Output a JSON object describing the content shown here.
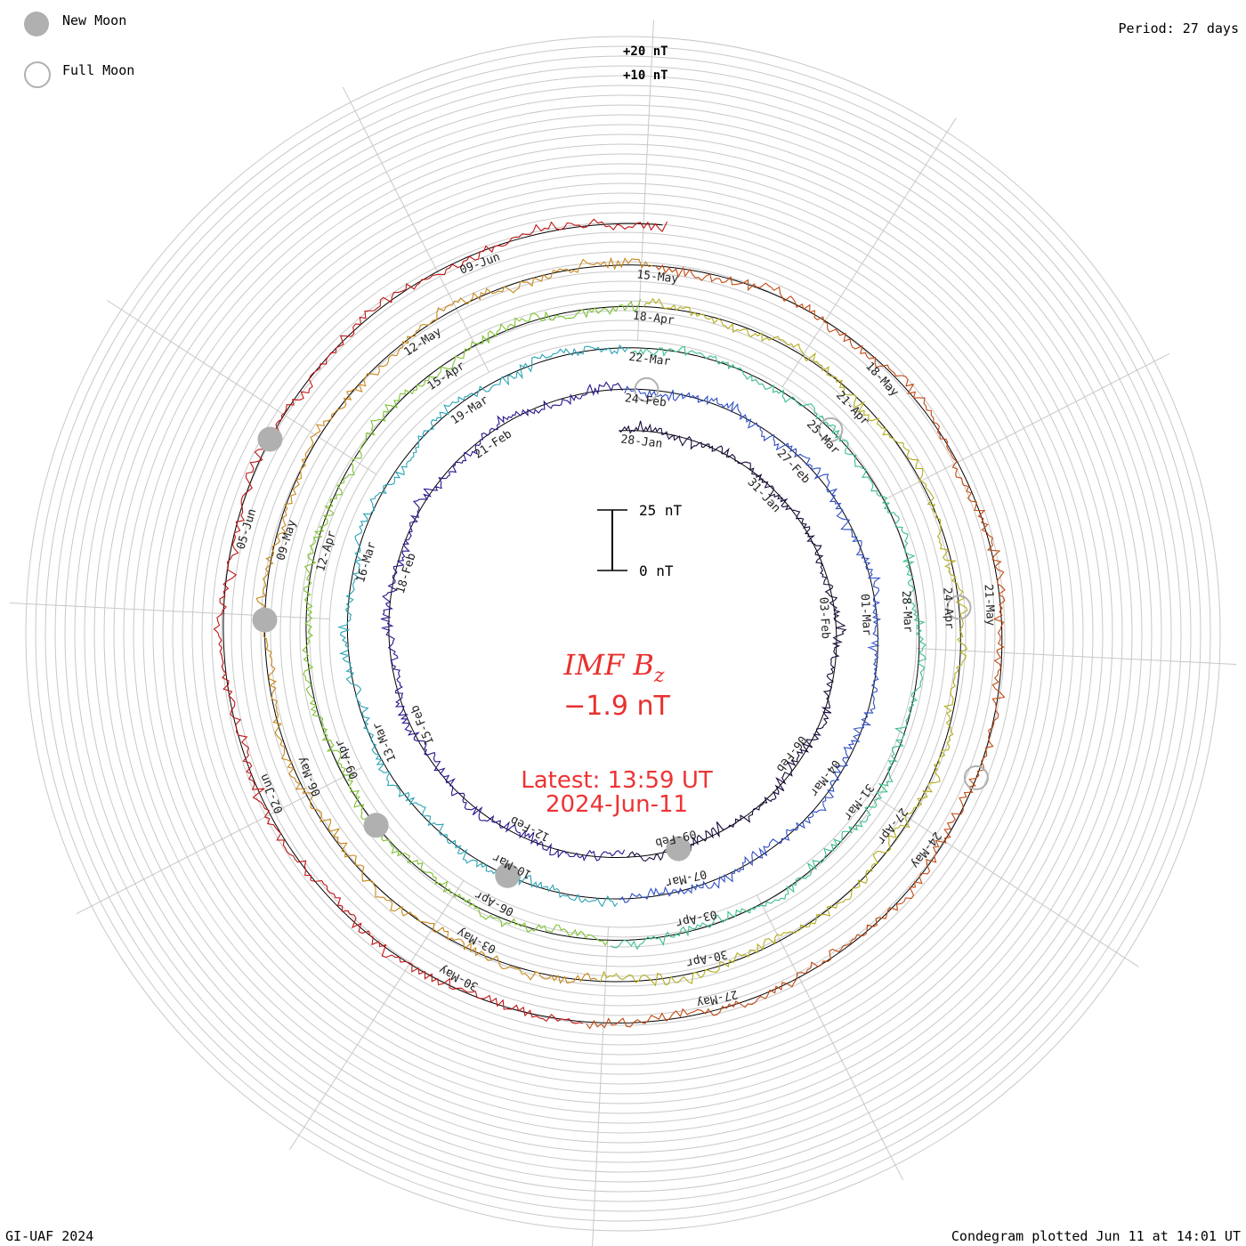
{
  "legend": {
    "new_moon": "New Moon",
    "full_moon": "Full Moon"
  },
  "period_label": "Period: 27 days",
  "credit": "GI-UAF 2024",
  "plotted": "Condegram plotted Jun 11 at 14:01 UT",
  "colors": {
    "moon": "#b0b0b0",
    "accent": "#e8312f",
    "grid": "#c8c8c8"
  },
  "chart_data": {
    "type": "line",
    "title": "IMF B",
    "title_subscript": "z",
    "current_value": "−1.9 nT",
    "latest_label": "Latest: 13:59 UT",
    "latest_date": "2024-Jun-11",
    "scale": {
      "top": "25 nT",
      "bottom": "0 nT"
    },
    "ring_labels": [
      "+20 nT",
      "+10 nT"
    ],
    "period_days": 27,
    "start_date": "2024-01-28",
    "end_date": "2024-06-11",
    "date_labels": [
      "28-Jan",
      "31-Jan",
      "03-Feb",
      "06-Feb",
      "09-Feb",
      "12-Feb",
      "15-Feb",
      "18-Feb",
      "21-Feb",
      "24-Feb",
      "27-Feb",
      "01-Mar",
      "04-Mar",
      "07-Mar",
      "10-Mar",
      "13-Mar",
      "16-Mar",
      "19-Mar",
      "22-Mar",
      "25-Mar",
      "28-Mar",
      "31-Mar",
      "03-Apr",
      "06-Apr",
      "09-Apr",
      "12-Apr",
      "15-Apr",
      "18-Apr",
      "21-Apr",
      "24-Apr",
      "27-Apr",
      "30-Apr",
      "03-May",
      "06-May",
      "09-May",
      "12-May",
      "15-May",
      "18-May",
      "21-May",
      "24-May",
      "27-May",
      "30-May",
      "02-Jun",
      "05-Jun",
      "09-Jun"
    ],
    "series": [
      {
        "color": "#1a0a3a",
        "label": "28-Jan"
      },
      {
        "color": "#2a158c",
        "label": "24-Feb"
      },
      {
        "color": "#2f4fc4",
        "label": "22-Mar"
      },
      {
        "color": "#2aa3b4",
        "label": "18-Apr"
      },
      {
        "color": "#3bbf8a",
        "label": "15-May"
      },
      {
        "color": "#7ec232",
        "label": "12-May"
      },
      {
        "color": "#b3ad1f",
        "label": "09-Jun"
      },
      {
        "color": "#c9871a",
        "label": "27-May"
      },
      {
        "color": "#c04a12",
        "label": "30-May"
      },
      {
        "color": "#c01515",
        "label": "09-Jun"
      }
    ],
    "new_moons": [
      "2024-02-09",
      "2024-03-10",
      "2024-04-08",
      "2024-05-08",
      "2024-06-06"
    ],
    "full_moons": [
      "2024-02-24",
      "2024-03-25",
      "2024-04-24",
      "2024-05-23"
    ]
  }
}
